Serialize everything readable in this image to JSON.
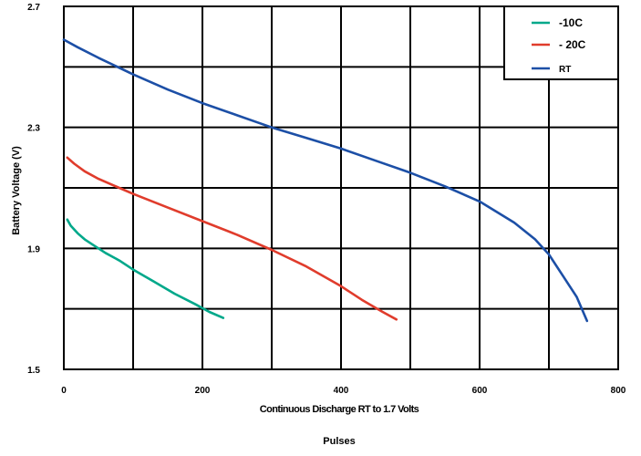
{
  "chart_data": {
    "type": "line",
    "title": "",
    "subtitle": "Continuous Discharge RT to 1.7 Volts",
    "xlabel": "Pulses",
    "ylabel": "Battery Voltage (V)",
    "xlim": [
      0,
      800
    ],
    "ylim": [
      1.5,
      2.7
    ],
    "x_ticks": [
      0,
      200,
      400,
      600,
      800
    ],
    "x_tick_labels": [
      "0",
      "200",
      "400",
      "600",
      "800"
    ],
    "x_grid": [
      0,
      100,
      200,
      300,
      400,
      500,
      600,
      700,
      800
    ],
    "y_ticks": [
      1.5,
      1.9,
      2.3,
      2.7
    ],
    "y_tick_labels": [
      "1.5",
      "1.9",
      "2.3",
      "2.7"
    ],
    "y_grid": [
      1.5,
      1.7,
      1.9,
      2.1,
      2.3,
      2.5,
      2.7
    ],
    "grid": true,
    "legend_position": "top-right",
    "series": [
      {
        "name": "-10C",
        "color": "#00a88a",
        "x": [
          5,
          10,
          20,
          30,
          40,
          60,
          80,
          100,
          130,
          160,
          190,
          210,
          230
        ],
        "y": [
          1.995,
          1.975,
          1.95,
          1.93,
          1.915,
          1.885,
          1.86,
          1.83,
          1.79,
          1.75,
          1.715,
          1.69,
          1.67
        ]
      },
      {
        "name": "- 20C",
        "color": "#e03c2c",
        "x": [
          5,
          15,
          30,
          50,
          80,
          100,
          150,
          200,
          250,
          300,
          350,
          400,
          430,
          460,
          480
        ],
        "y": [
          2.2,
          2.18,
          2.155,
          2.13,
          2.1,
          2.08,
          2.035,
          1.99,
          1.945,
          1.895,
          1.84,
          1.775,
          1.73,
          1.69,
          1.665
        ]
      },
      {
        "name": "RT",
        "color": "#1c4fa6",
        "x": [
          0,
          20,
          50,
          100,
          150,
          200,
          250,
          300,
          350,
          400,
          450,
          500,
          550,
          600,
          650,
          680,
          700,
          720,
          740,
          755
        ],
        "y": [
          2.59,
          2.565,
          2.53,
          2.475,
          2.425,
          2.38,
          2.34,
          2.3,
          2.265,
          2.23,
          2.19,
          2.15,
          2.105,
          2.055,
          1.985,
          1.93,
          1.88,
          1.81,
          1.74,
          1.66
        ]
      }
    ]
  }
}
